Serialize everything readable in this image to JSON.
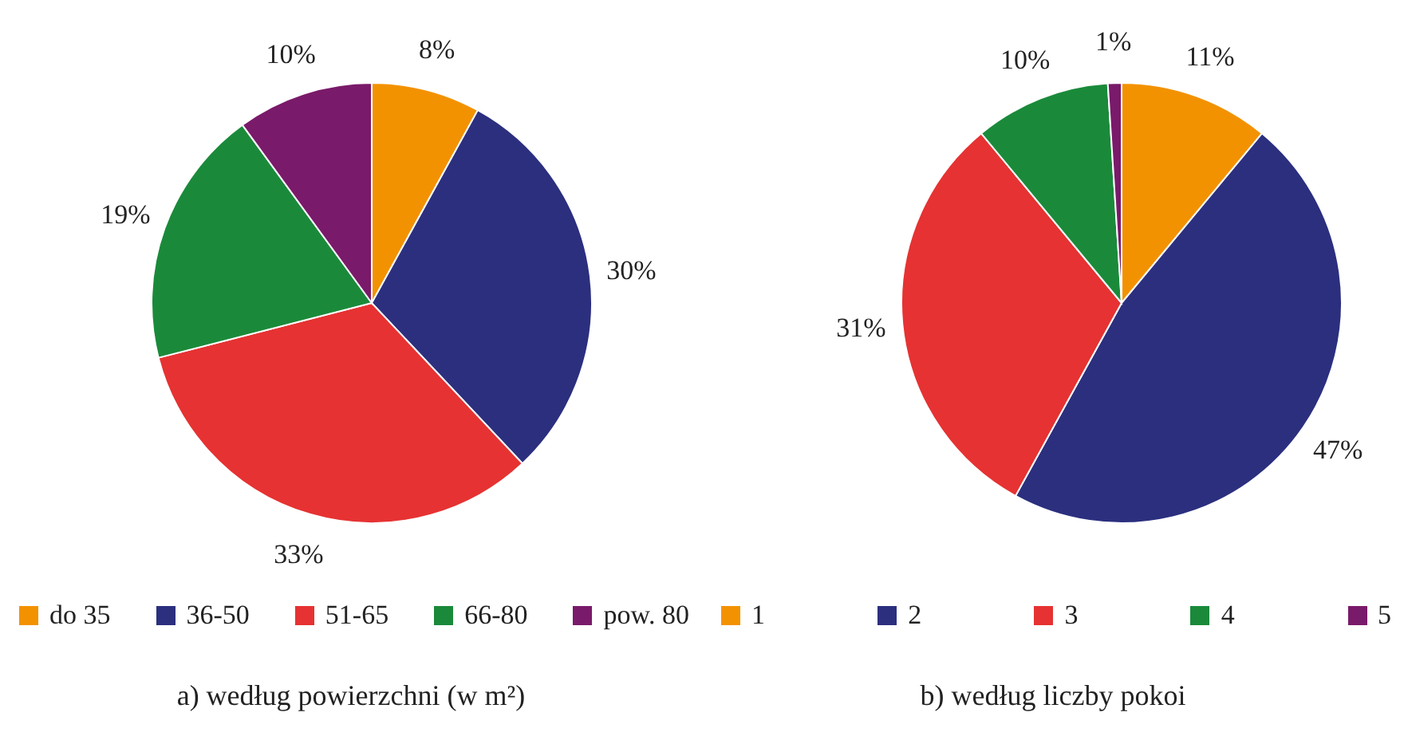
{
  "chart_data": [
    {
      "type": "pie",
      "title": "a) według powierzchni (w m²)",
      "categories": [
        "do 35",
        "36-50",
        "51-65",
        "66-80",
        "pow. 80"
      ],
      "values": [
        8,
        30,
        33,
        19,
        10
      ],
      "colors": [
        "#f39200",
        "#2b2f7e",
        "#e63232",
        "#1a8a3a",
        "#7a1a6a"
      ],
      "value_labels": [
        "8%",
        "30%",
        "33%",
        "19%",
        "10%"
      ],
      "legend": "bottom"
    },
    {
      "type": "pie",
      "title": "b) według liczby pokoi",
      "categories": [
        "1",
        "2",
        "3",
        "4",
        "5"
      ],
      "values": [
        11,
        47,
        31,
        10,
        1
      ],
      "colors": [
        "#f39200",
        "#2b2f7e",
        "#e63232",
        "#1a8a3a",
        "#7a1a6a"
      ],
      "value_labels": [
        "11%",
        "47%",
        "31%",
        "10%",
        "1%"
      ],
      "legend": "bottom"
    }
  ]
}
